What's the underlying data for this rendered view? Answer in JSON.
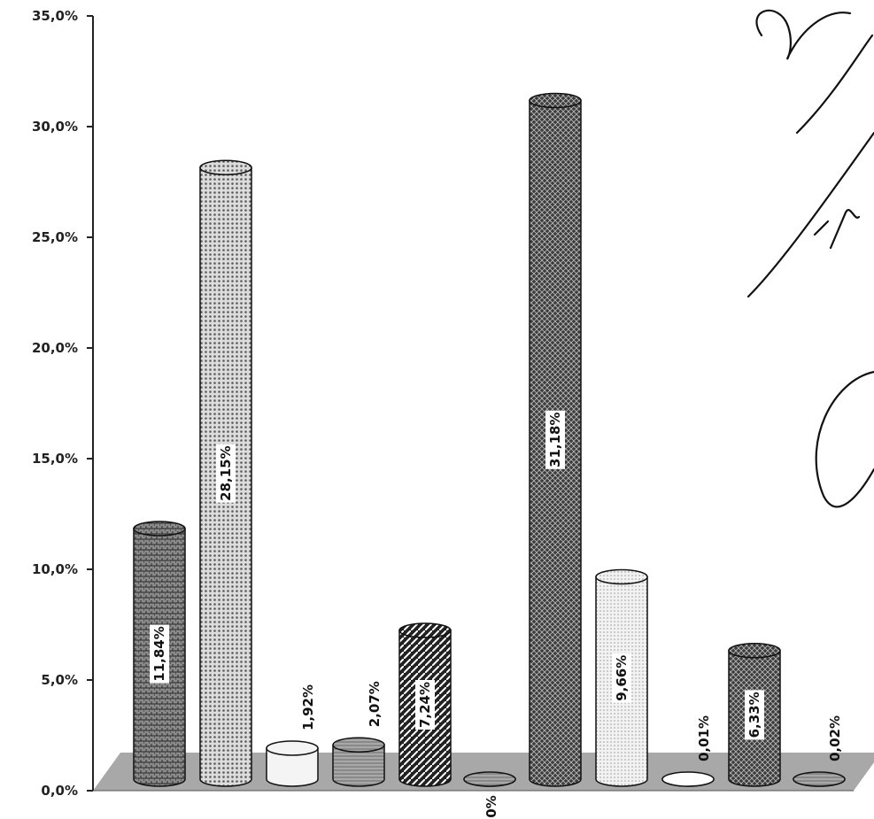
{
  "chart_data": {
    "type": "bar",
    "style": "3d-cylinder",
    "title": "",
    "xlabel": "",
    "ylabel": "",
    "ylim": [
      0,
      35
    ],
    "y_ticks": [
      "0,0%",
      "5,0%",
      "10,0%",
      "15,0%",
      "20,0%",
      "25,0%",
      "30,0%",
      "35,0%"
    ],
    "grid": false,
    "legend": "none",
    "values": [
      11.84,
      28.15,
      1.92,
      2.07,
      7.24,
      0,
      31.18,
      9.66,
      0.01,
      6.33,
      0.02
    ],
    "labels": [
      "11,84%",
      "28,15%",
      "1,92%",
      "2,07%",
      "7,24%",
      "0%",
      "31,18%",
      "9,66%",
      "0,01%",
      "6,33%",
      "0,02%"
    ],
    "label_positions": [
      "inside",
      "inside",
      "above",
      "above",
      "inside",
      "below",
      "inside",
      "inside",
      "above",
      "inside",
      "above"
    ],
    "bar_fills": [
      "#7a7a7a",
      "#c8c8c8",
      "#f4f4f4",
      "#9a9a9a",
      "#3a3a3a",
      "#8a8a8a",
      "#555555",
      "#e4e4e4",
      "#ffffff",
      "#4a4a4a",
      "#b0b0b0"
    ],
    "patterns": [
      "pat-bricks",
      "pat-dots",
      "none",
      "pat-fine",
      "pat-diag",
      "pat-fine",
      "pat-cross",
      "pat-light",
      "none",
      "pat-cross",
      "pat-fine"
    ],
    "floor_color": "#a8a8a8"
  }
}
